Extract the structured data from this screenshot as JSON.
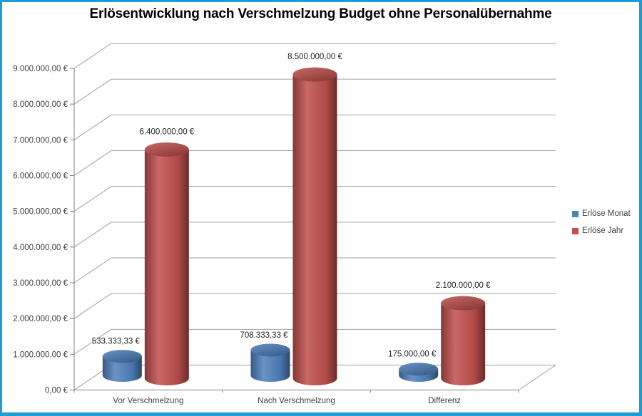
{
  "window": {
    "border_color": "#1e9cd8",
    "background_color": "#ffffff",
    "text_color": "#3f3f3f",
    "gridline_color": "#9f9f9f",
    "axis_color": "#808080"
  },
  "chart_data": {
    "type": "bar",
    "subtype": "3d-cylinder",
    "title": "Erlösentwicklung nach Verschmelzung Budget ohne Personalübernahme",
    "categories": [
      "Vor Verschmelzung",
      "Nach Verschmelzung",
      "Differenz"
    ],
    "series": [
      {
        "name": "Erlöse Monat",
        "color": "#4F81BD",
        "values": [
          533333.33,
          708333.33,
          175000.0
        ],
        "labels": [
          "533.333,33 €",
          "708.333,33 €",
          "175.000,00 €"
        ]
      },
      {
        "name": "Erlöse Jahr",
        "color": "#C0504D",
        "values": [
          6400000.0,
          8500000.0,
          2100000.0
        ],
        "labels": [
          "6.400.000,00 €",
          "8.500.000,00 €",
          "2.100.000,00 €"
        ]
      }
    ],
    "y_axis": {
      "min": 0,
      "max": 9000000,
      "step": 1000000,
      "tick_labels": [
        "0,00 €",
        "1.000.000,00 €",
        "2.000.000,00 €",
        "3.000.000,00 €",
        "4.000.000,00 €",
        "5.000.000,00 €",
        "6.000.000,00 €",
        "7.000.000,00 €",
        "8.000.000,00 €",
        "9.000.000,00 €"
      ]
    },
    "xlabel": "",
    "ylabel": "",
    "grid": true,
    "legend": {
      "position": "right"
    }
  }
}
